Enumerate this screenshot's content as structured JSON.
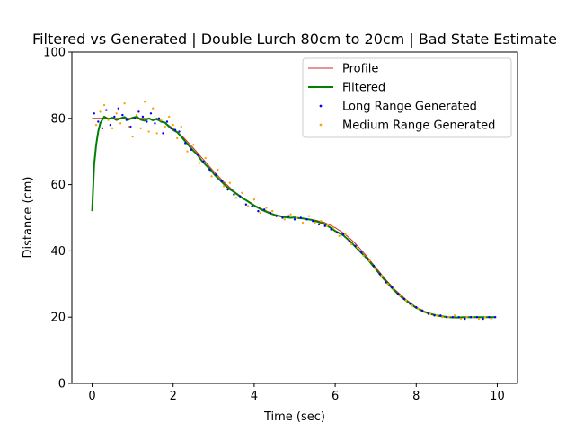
{
  "chart_data": {
    "type": "line",
    "title": "Filtered vs Generated | Double Lurch 80cm to 20cm | Bad State Estimate",
    "xlabel": "Time (sec)",
    "ylabel": "Distance (cm)",
    "xlim": [
      -0.5,
      10.5
    ],
    "ylim": [
      0,
      100
    ],
    "xticks": [
      0,
      2,
      4,
      6,
      8,
      10
    ],
    "yticks": [
      0,
      20,
      40,
      60,
      80,
      100
    ],
    "legend_position": "upper-right",
    "series": [
      {
        "name": "Profile",
        "style": "line",
        "color": "#d62728",
        "x": [
          0.0,
          0.25,
          0.5,
          0.75,
          1.0,
          1.25,
          1.5,
          1.75,
          2.0,
          2.25,
          2.5,
          2.75,
          3.0,
          3.25,
          3.5,
          3.75,
          4.0,
          4.25,
          4.5,
          4.75,
          5.0,
          5.25,
          5.5,
          5.75,
          6.0,
          6.25,
          6.5,
          6.75,
          7.0,
          7.25,
          7.5,
          7.75,
          8.0,
          8.25,
          8.5,
          8.75,
          9.0,
          9.25,
          9.5,
          9.75,
          9.95
        ],
        "y": [
          80.0,
          80.0,
          80.0,
          80.0,
          80.0,
          80.0,
          79.8,
          79.0,
          77.0,
          74.3,
          71.0,
          67.5,
          64.0,
          60.8,
          58.0,
          55.8,
          53.8,
          52.3,
          51.0,
          50.3,
          50.0,
          49.8,
          49.3,
          48.5,
          47.0,
          45.0,
          42.2,
          38.8,
          35.0,
          31.3,
          28.0,
          25.3,
          23.0,
          21.5,
          20.6,
          20.1,
          20.0,
          20.0,
          20.0,
          20.0,
          20.0
        ]
      },
      {
        "name": "Filtered",
        "style": "line",
        "color": "#008000",
        "x": [
          0.0,
          0.05,
          0.1,
          0.15,
          0.2,
          0.25,
          0.3,
          0.4,
          0.5,
          0.6,
          0.7,
          0.8,
          0.9,
          1.0,
          1.1,
          1.2,
          1.3,
          1.4,
          1.5,
          1.6,
          1.7,
          1.8,
          1.9,
          2.0,
          2.1,
          2.2,
          2.3,
          2.4,
          2.5,
          2.6,
          2.7,
          2.8,
          2.9,
          3.0,
          3.1,
          3.2,
          3.3,
          3.4,
          3.5,
          3.6,
          3.7,
          3.8,
          3.9,
          4.0,
          4.1,
          4.2,
          4.3,
          4.4,
          4.5,
          4.6,
          4.7,
          4.8,
          4.9,
          5.0,
          5.1,
          5.2,
          5.3,
          5.4,
          5.5,
          5.6,
          5.7,
          5.8,
          5.9,
          6.0,
          6.2,
          6.4,
          6.6,
          6.8,
          7.0,
          7.2,
          7.4,
          7.6,
          7.8,
          8.0,
          8.2,
          8.4,
          8.6,
          8.8,
          9.0,
          9.2,
          9.4,
          9.6,
          9.8,
          9.95
        ],
        "y": [
          52.0,
          66.0,
          72.0,
          76.0,
          78.5,
          79.5,
          80.5,
          79.8,
          80.2,
          79.5,
          80.0,
          80.4,
          79.6,
          80.2,
          80.5,
          79.6,
          79.3,
          80.0,
          79.4,
          79.9,
          79.0,
          78.7,
          77.5,
          76.5,
          75.8,
          74.5,
          73.0,
          71.6,
          70.2,
          69.0,
          67.3,
          66.0,
          64.8,
          63.3,
          62.0,
          60.8,
          59.6,
          58.6,
          57.8,
          56.9,
          56.0,
          55.3,
          54.5,
          53.7,
          53.0,
          52.3,
          51.8,
          51.3,
          50.9,
          50.6,
          50.3,
          50.1,
          50.0,
          50.1,
          49.9,
          49.8,
          49.6,
          49.4,
          49.0,
          48.7,
          48.3,
          47.6,
          46.9,
          46.0,
          44.7,
          42.5,
          40.0,
          37.5,
          34.5,
          31.5,
          28.8,
          26.4,
          24.5,
          22.8,
          21.6,
          20.8,
          20.3,
          20.0,
          19.9,
          20.0,
          20.0,
          20.0,
          20.0,
          20.0
        ]
      },
      {
        "name": "Long Range Generated",
        "style": "scatter",
        "color": "#0000ff",
        "x": [
          0.05,
          0.15,
          0.25,
          0.35,
          0.45,
          0.55,
          0.65,
          0.75,
          0.85,
          0.95,
          1.05,
          1.15,
          1.25,
          1.35,
          1.45,
          1.55,
          1.65,
          1.75,
          1.85,
          1.95,
          2.05,
          2.15,
          2.3,
          2.45,
          2.6,
          2.75,
          2.9,
          3.05,
          3.2,
          3.35,
          3.5,
          3.65,
          3.8,
          3.95,
          4.1,
          4.25,
          4.4,
          4.55,
          4.7,
          4.85,
          5.0,
          5.15,
          5.3,
          5.45,
          5.6,
          5.75,
          5.9,
          6.05,
          6.2,
          6.35,
          6.5,
          6.65,
          6.8,
          6.95,
          7.1,
          7.25,
          7.4,
          7.55,
          7.7,
          7.85,
          8.0,
          8.15,
          8.3,
          8.45,
          8.6,
          8.75,
          8.9,
          9.05,
          9.2,
          9.35,
          9.5,
          9.65,
          9.8,
          9.95
        ],
        "y": [
          81.5,
          79.0,
          77.0,
          82.5,
          78.0,
          80.5,
          83.0,
          81.0,
          79.5,
          77.5,
          80.0,
          82.0,
          80.5,
          79.0,
          81.5,
          78.5,
          80.0,
          75.5,
          79.0,
          77.0,
          76.5,
          76.0,
          72.5,
          70.5,
          69.0,
          67.0,
          64.5,
          63.0,
          61.0,
          58.5,
          57.0,
          56.5,
          54.0,
          53.5,
          52.0,
          52.5,
          51.5,
          50.5,
          50.0,
          50.5,
          49.5,
          50.0,
          49.5,
          49.0,
          48.0,
          47.5,
          46.5,
          45.5,
          45.0,
          43.0,
          41.5,
          39.5,
          37.5,
          35.5,
          33.0,
          30.5,
          29.0,
          27.0,
          25.5,
          24.0,
          23.0,
          22.0,
          21.0,
          20.5,
          20.5,
          20.0,
          20.0,
          20.0,
          19.5,
          20.0,
          20.0,
          19.5,
          20.0,
          20.0
        ]
      },
      {
        "name": "Medium Range Generated",
        "style": "scatter",
        "color": "#ffa500",
        "x": [
          0.1,
          0.2,
          0.3,
          0.4,
          0.5,
          0.6,
          0.7,
          0.8,
          0.9,
          1.0,
          1.1,
          1.2,
          1.3,
          1.4,
          1.5,
          1.6,
          1.7,
          1.8,
          1.9,
          2.0,
          2.1,
          2.2,
          2.35,
          2.5,
          2.65,
          2.8,
          2.95,
          3.1,
          3.25,
          3.4,
          3.55,
          3.7,
          3.85,
          4.0,
          4.15,
          4.3,
          4.45,
          4.6,
          4.75,
          4.9,
          5.05,
          5.2,
          5.35,
          5.5,
          5.65,
          5.8,
          5.95,
          6.1,
          6.25,
          6.4,
          6.55,
          6.7,
          6.85,
          7.0,
          7.15,
          7.3,
          7.45,
          7.6,
          7.75,
          7.9,
          8.05,
          8.2,
          8.35,
          8.5,
          8.65,
          8.8,
          8.95,
          9.1,
          9.25,
          9.4,
          9.55,
          9.7,
          9.85
        ],
        "y": [
          78.0,
          82.0,
          84.0,
          79.5,
          77.0,
          81.5,
          78.5,
          84.5,
          77.5,
          74.5,
          81.0,
          77.0,
          85.0,
          76.0,
          83.0,
          75.5,
          79.5,
          77.5,
          80.5,
          78.0,
          74.0,
          77.5,
          70.0,
          72.0,
          66.5,
          68.0,
          62.5,
          64.5,
          59.5,
          60.5,
          56.0,
          57.5,
          53.5,
          55.5,
          51.5,
          53.0,
          52.0,
          50.5,
          49.5,
          51.0,
          50.0,
          48.5,
          50.5,
          48.5,
          49.0,
          47.5,
          47.0,
          44.5,
          45.0,
          42.0,
          41.0,
          38.5,
          37.0,
          34.5,
          32.5,
          30.0,
          28.5,
          26.5,
          25.0,
          23.5,
          22.5,
          21.5,
          21.0,
          20.5,
          20.0,
          20.0,
          20.5,
          19.5,
          20.0,
          20.0,
          19.5,
          20.0,
          19.5
        ]
      }
    ]
  }
}
